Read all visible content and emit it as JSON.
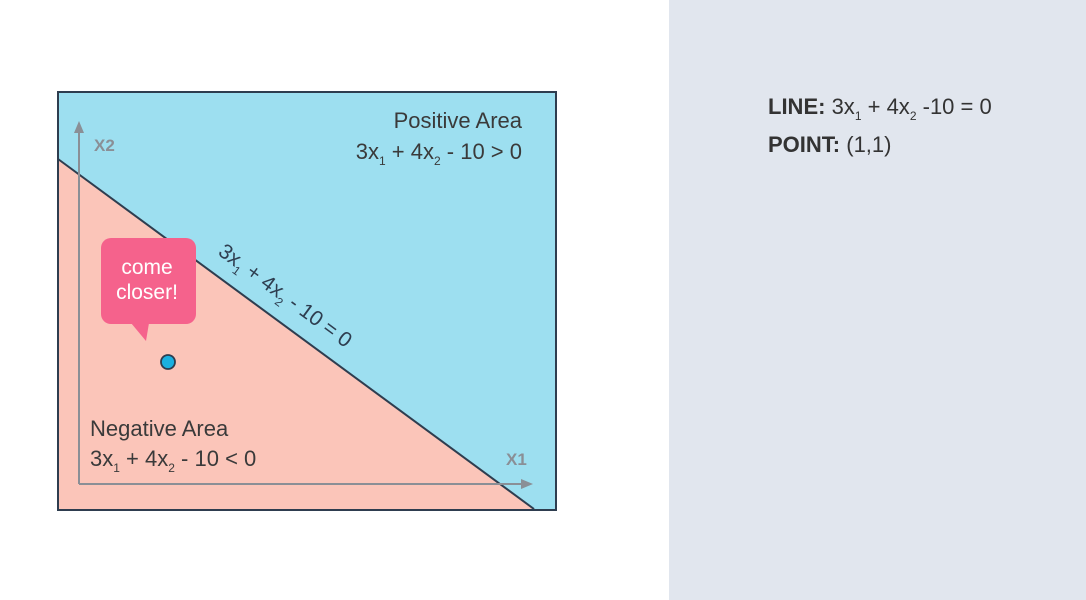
{
  "diagram": {
    "positive_area": {
      "title": "Positive Area",
      "eq_part1": "3x",
      "sub1": "1",
      "eq_part2": " + 4x",
      "sub2": "2",
      "eq_part3": " - 10 > 0"
    },
    "negative_area": {
      "title": "Negative Area",
      "eq_part1": "3x",
      "sub1": "1",
      "eq_part2": " + 4x",
      "sub2": "2",
      "eq_part3": " - 10 < 0"
    },
    "line_label": {
      "eq_part1": "3x",
      "sub1": "1",
      "eq_part2": " + 4x",
      "sub2": "2",
      "eq_part3": " - 10 = 0"
    },
    "x_axis_label": "X1",
    "y_axis_label": "X2",
    "bubble_text_line1": "come",
    "bubble_text_line2": "closer!",
    "colors": {
      "positive": "#9ddff0",
      "negative": "#fbc5b9",
      "border": "#2e3d4f",
      "axis": "#8a8f96",
      "point": "#1ab0e0",
      "bubble": "#f5628c"
    }
  },
  "info": {
    "line_label": "LINE:",
    "line_eq_part1": " 3x",
    "line_sub1": "1",
    "line_eq_part2": " + 4x",
    "line_sub2": "2",
    "line_eq_part3": " -10 = 0",
    "point_label": "POINT:",
    "point_value": " (1,1)"
  }
}
